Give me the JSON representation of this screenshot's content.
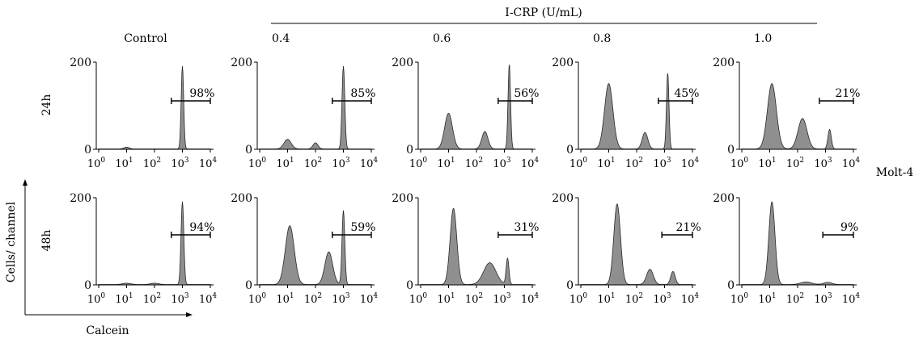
{
  "chart_data": {
    "type": "histogram-grid",
    "header": "I-CRP (U/mL)",
    "columns": [
      "Control",
      "0.4",
      "0.6",
      "0.8",
      "1.0"
    ],
    "rows": [
      "24h",
      "48h"
    ],
    "cell_line": "Molt-4",
    "y_axis_label": "Cells/ channel",
    "x_axis_label": "Calcein",
    "y_ticks": [
      "200",
      "0"
    ],
    "x_ticks": [
      "10",
      "10",
      "10",
      "10",
      "10"
    ],
    "x_tick_exponents": [
      "0",
      "1",
      "2",
      "3",
      "4"
    ],
    "x_scale": "log",
    "xlim": [
      1,
      10000
    ],
    "ylim": [
      0,
      200
    ],
    "panels": [
      {
        "row": "24h",
        "column": "Control",
        "percent": "98%",
        "gate": [
          400,
          10000
        ],
        "peaks": [
          [
            10,
            4,
            0.1
          ],
          [
            1000,
            190,
            0.045
          ]
        ]
      },
      {
        "row": "24h",
        "column": "0.4",
        "percent": "85%",
        "gate": [
          400,
          10000
        ],
        "peaks": [
          [
            10,
            22,
            0.13
          ],
          [
            100,
            14,
            0.09
          ],
          [
            1000,
            190,
            0.05
          ]
        ]
      },
      {
        "row": "24h",
        "column": "0.6",
        "percent": "56%",
        "gate": [
          600,
          10000
        ],
        "peaks": [
          [
            10,
            82,
            0.14
          ],
          [
            200,
            40,
            0.11
          ],
          [
            1500,
            195,
            0.045
          ]
        ]
      },
      {
        "row": "24h",
        "column": "0.8",
        "percent": "45%",
        "gate": [
          600,
          10000
        ],
        "peaks": [
          [
            10,
            150,
            0.15
          ],
          [
            200,
            38,
            0.1
          ],
          [
            1300,
            175,
            0.045
          ]
        ]
      },
      {
        "row": "24h",
        "column": "1.0",
        "percent": "21%",
        "gate": [
          600,
          10000
        ],
        "peaks": [
          [
            12,
            150,
            0.16
          ],
          [
            150,
            70,
            0.16
          ],
          [
            1400,
            45,
            0.06
          ]
        ]
      },
      {
        "row": "48h",
        "column": "Control",
        "percent": "94%",
        "gate": [
          400,
          10000
        ],
        "peaks": [
          [
            10,
            3,
            0.15
          ],
          [
            100,
            3,
            0.15
          ],
          [
            1000,
            190,
            0.05
          ]
        ]
      },
      {
        "row": "48h",
        "column": "0.4",
        "percent": "59%",
        "gate": [
          400,
          10000
        ],
        "peaks": [
          [
            12,
            135,
            0.16
          ],
          [
            300,
            75,
            0.14
          ],
          [
            1000,
            170,
            0.05
          ]
        ]
      },
      {
        "row": "48h",
        "column": "0.6",
        "percent": "31%",
        "gate": [
          600,
          10000
        ],
        "peaks": [
          [
            15,
            175,
            0.12
          ],
          [
            300,
            50,
            0.22
          ],
          [
            1300,
            60,
            0.05
          ]
        ]
      },
      {
        "row": "48h",
        "column": "0.8",
        "percent": "21%",
        "gate": [
          800,
          10000
        ],
        "peaks": [
          [
            20,
            185,
            0.12
          ],
          [
            300,
            35,
            0.12
          ],
          [
            2000,
            30,
            0.08
          ]
        ]
      },
      {
        "row": "48h",
        "column": "1.0",
        "percent": "9%",
        "gate": [
          800,
          10000
        ],
        "peaks": [
          [
            12,
            190,
            0.11
          ],
          [
            200,
            6,
            0.2
          ],
          [
            1200,
            5,
            0.15
          ]
        ]
      }
    ]
  }
}
